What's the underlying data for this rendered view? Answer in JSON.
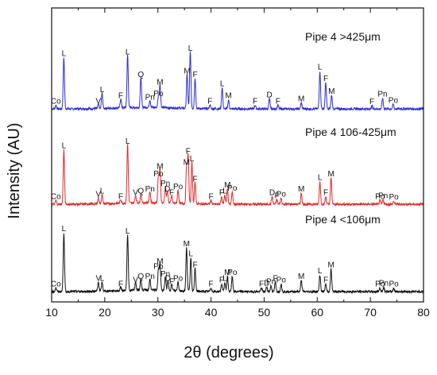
{
  "chart_data": {
    "type": "line",
    "xlabel": "2θ (degrees)",
    "ylabel": "Intensity (AU)",
    "xlim": [
      10,
      80
    ],
    "x_ticks": [
      10,
      20,
      30,
      40,
      50,
      60,
      70,
      80
    ],
    "y_ticks_visible": false,
    "grid": false,
    "series": [
      {
        "name": "Pipe 4 >425μm",
        "color": "#2b2bd6",
        "peaks": [
          {
            "x": 10.8,
            "y": 0.05,
            "label": "Co"
          },
          {
            "x": 12.3,
            "y": 0.68,
            "label": "L"
          },
          {
            "x": 18.8,
            "y": 0.05,
            "label": "V"
          },
          {
            "x": 19.5,
            "y": 0.2,
            "label": "L"
          },
          {
            "x": 23.0,
            "y": 0.12,
            "label": "F"
          },
          {
            "x": 24.3,
            "y": 0.7,
            "label": "L"
          },
          {
            "x": 26.8,
            "y": 0.4,
            "label": "Q"
          },
          {
            "x": 28.5,
            "y": 0.1,
            "label": "Pn"
          },
          {
            "x": 30.1,
            "y": 0.15,
            "label": "Po"
          },
          {
            "x": 30.4,
            "y": 0.3,
            "label": "M"
          },
          {
            "x": 35.5,
            "y": 0.45,
            "label": "M"
          },
          {
            "x": 36.1,
            "y": 0.75,
            "label": "L"
          },
          {
            "x": 37.0,
            "y": 0.4,
            "label": "F"
          },
          {
            "x": 39.8,
            "y": 0.05,
            "label": "F"
          },
          {
            "x": 42.1,
            "y": 0.28,
            "label": "L"
          },
          {
            "x": 43.3,
            "y": 0.12,
            "label": "M"
          },
          {
            "x": 48.3,
            "y": 0.05,
            "label": "F"
          },
          {
            "x": 51.0,
            "y": 0.13,
            "label": "D"
          },
          {
            "x": 52.6,
            "y": 0.05,
            "label": "F"
          },
          {
            "x": 57.0,
            "y": 0.08,
            "label": "M"
          },
          {
            "x": 60.5,
            "y": 0.5,
            "label": "L"
          },
          {
            "x": 61.6,
            "y": 0.35,
            "label": "F"
          },
          {
            "x": 62.7,
            "y": 0.18,
            "label": "M"
          },
          {
            "x": 70.3,
            "y": 0.04,
            "label": "F"
          },
          {
            "x": 72.3,
            "y": 0.14,
            "label": "Pn"
          },
          {
            "x": 74.3,
            "y": 0.06,
            "label": "Po"
          }
        ]
      },
      {
        "name": "Pipe 4 106-425μm",
        "color": "#e02a2a",
        "peaks": [
          {
            "x": 10.8,
            "y": 0.05,
            "label": "Co"
          },
          {
            "x": 12.3,
            "y": 0.72,
            "label": "L"
          },
          {
            "x": 18.8,
            "y": 0.08,
            "label": "V"
          },
          {
            "x": 19.5,
            "y": 0.12,
            "label": "L"
          },
          {
            "x": 23.0,
            "y": 0.05,
            "label": "F"
          },
          {
            "x": 24.3,
            "y": 0.78,
            "label": "L"
          },
          {
            "x": 25.8,
            "y": 0.1,
            "label": "V"
          },
          {
            "x": 26.8,
            "y": 0.12,
            "label": "Q"
          },
          {
            "x": 28.5,
            "y": 0.15,
            "label": "Pn"
          },
          {
            "x": 30.1,
            "y": 0.35,
            "label": "Po"
          },
          {
            "x": 30.4,
            "y": 0.45,
            "label": "M"
          },
          {
            "x": 31.4,
            "y": 0.22,
            "label": "Pn"
          },
          {
            "x": 31.8,
            "y": 0.15,
            "label": "D"
          },
          {
            "x": 32.6,
            "y": 0.1,
            "label": "F"
          },
          {
            "x": 33.8,
            "y": 0.18,
            "label": "Po"
          },
          {
            "x": 35.4,
            "y": 0.5,
            "label": "M"
          },
          {
            "x": 35.7,
            "y": 0.65,
            "label": "F"
          },
          {
            "x": 36.4,
            "y": 0.55,
            "label": "L"
          },
          {
            "x": 37.0,
            "y": 0.28,
            "label": "F"
          },
          {
            "x": 40.0,
            "y": 0.05,
            "label": "F"
          },
          {
            "x": 42.0,
            "y": 0.1,
            "label": "F"
          },
          {
            "x": 42.6,
            "y": 0.12,
            "label": "L"
          },
          {
            "x": 43.1,
            "y": 0.2,
            "label": "M"
          },
          {
            "x": 44.0,
            "y": 0.16,
            "label": "Po"
          },
          {
            "x": 51.5,
            "y": 0.1,
            "label": "D"
          },
          {
            "x": 52.4,
            "y": 0.06,
            "label": "F"
          },
          {
            "x": 53.2,
            "y": 0.08,
            "label": "Po"
          },
          {
            "x": 57.0,
            "y": 0.15,
            "label": "M"
          },
          {
            "x": 60.5,
            "y": 0.3,
            "label": "L"
          },
          {
            "x": 61.6,
            "y": 0.1,
            "label": "F"
          },
          {
            "x": 62.6,
            "y": 0.35,
            "label": "M"
          },
          {
            "x": 71.8,
            "y": 0.05,
            "label": "Po"
          },
          {
            "x": 72.4,
            "y": 0.06,
            "label": "Pn"
          },
          {
            "x": 74.4,
            "y": 0.04,
            "label": "Po"
          }
        ]
      },
      {
        "name": "Pipe 4 <106μm",
        "color": "#111111",
        "peaks": [
          {
            "x": 10.8,
            "y": 0.05,
            "label": "Co"
          },
          {
            "x": 12.3,
            "y": 0.78,
            "label": "L"
          },
          {
            "x": 18.8,
            "y": 0.12,
            "label": "V"
          },
          {
            "x": 19.5,
            "y": 0.12,
            "label": "L"
          },
          {
            "x": 23.0,
            "y": 0.05,
            "label": "F"
          },
          {
            "x": 24.3,
            "y": 0.75,
            "label": "L"
          },
          {
            "x": 25.8,
            "y": 0.1,
            "label": "V"
          },
          {
            "x": 26.8,
            "y": 0.15,
            "label": "Q"
          },
          {
            "x": 28.5,
            "y": 0.15,
            "label": "Pn"
          },
          {
            "x": 30.1,
            "y": 0.28,
            "label": "Po"
          },
          {
            "x": 30.4,
            "y": 0.35,
            "label": "M"
          },
          {
            "x": 31.4,
            "y": 0.18,
            "label": "Pn"
          },
          {
            "x": 31.9,
            "y": 0.12,
            "label": "D"
          },
          {
            "x": 32.6,
            "y": 0.08,
            "label": "F"
          },
          {
            "x": 33.8,
            "y": 0.12,
            "label": "Po"
          },
          {
            "x": 35.4,
            "y": 0.58,
            "label": "M"
          },
          {
            "x": 36.2,
            "y": 0.45,
            "label": "L"
          },
          {
            "x": 37.0,
            "y": 0.3,
            "label": "F"
          },
          {
            "x": 40.0,
            "y": 0.05,
            "label": "F"
          },
          {
            "x": 42.0,
            "y": 0.1,
            "label": "F"
          },
          {
            "x": 42.6,
            "y": 0.12,
            "label": "L"
          },
          {
            "x": 43.1,
            "y": 0.2,
            "label": "M"
          },
          {
            "x": 44.0,
            "y": 0.2,
            "label": "Po"
          },
          {
            "x": 49.5,
            "y": 0.05,
            "label": "F"
          },
          {
            "x": 50.5,
            "y": 0.06,
            "label": "D"
          },
          {
            "x": 51.3,
            "y": 0.08,
            "label": "Pn"
          },
          {
            "x": 52.1,
            "y": 0.12,
            "label": "F"
          },
          {
            "x": 53.2,
            "y": 0.1,
            "label": "Po"
          },
          {
            "x": 57.0,
            "y": 0.15,
            "label": "M"
          },
          {
            "x": 60.5,
            "y": 0.22,
            "label": "L"
          },
          {
            "x": 61.6,
            "y": 0.1,
            "label": "F"
          },
          {
            "x": 62.6,
            "y": 0.3,
            "label": "M"
          },
          {
            "x": 71.8,
            "y": 0.05,
            "label": "Po"
          },
          {
            "x": 72.5,
            "y": 0.06,
            "label": "Pn"
          },
          {
            "x": 74.4,
            "y": 0.05,
            "label": "Po"
          }
        ]
      }
    ]
  }
}
